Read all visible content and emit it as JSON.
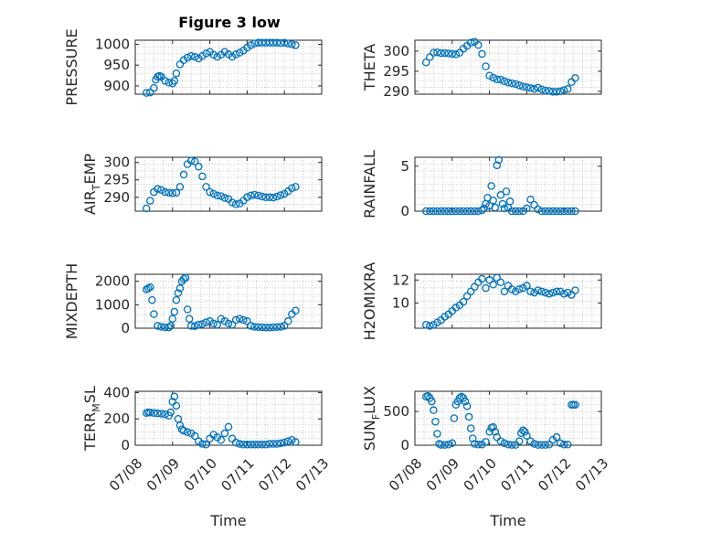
{
  "figure_title": "Figure 3 low",
  "marker_color": "#0072BD",
  "chart_data": [
    {
      "type": "scatter",
      "title": "Figure 3 low",
      "ylabel": "PRESSURE",
      "xlabel": "",
      "ylim": [
        880,
        1010
      ],
      "yticks": [
        900,
        950,
        1000
      ],
      "xlim": [
        8,
        13
      ],
      "grid": true,
      "x": [
        8.3,
        8.4,
        8.5,
        8.55,
        8.6,
        8.65,
        8.7,
        8.8,
        8.9,
        9.0,
        9.05,
        9.1,
        9.2,
        9.3,
        9.4,
        9.5,
        9.6,
        9.7,
        9.8,
        9.9,
        10.0,
        10.1,
        10.2,
        10.3,
        10.4,
        10.5,
        10.6,
        10.7,
        10.8,
        10.9,
        11.0,
        11.1,
        11.2,
        11.3,
        11.4,
        11.5,
        11.6,
        11.7,
        11.8,
        11.9,
        12.0,
        12.1,
        12.2,
        12.3
      ],
      "y": [
        883,
        884,
        895,
        915,
        922,
        924,
        922,
        912,
        908,
        906,
        912,
        930,
        952,
        962,
        968,
        972,
        970,
        966,
        972,
        978,
        982,
        975,
        970,
        975,
        982,
        976,
        970,
        976,
        980,
        985,
        992,
        998,
        1002,
        1004,
        1004,
        1004,
        1004,
        1004,
        1004,
        1003,
        1004,
        1002,
        1000,
        998
      ]
    },
    {
      "type": "scatter",
      "ylabel": "THETA",
      "xlabel": "",
      "ylim": [
        289.3,
        302.7
      ],
      "yticks": [
        290,
        295,
        300
      ],
      "xlim": [
        8,
        13
      ],
      "grid": true,
      "x": [
        8.3,
        8.4,
        8.5,
        8.6,
        8.7,
        8.8,
        8.9,
        9.0,
        9.1,
        9.2,
        9.3,
        9.4,
        9.5,
        9.6,
        9.7,
        9.8,
        9.9,
        10.0,
        10.1,
        10.2,
        10.3,
        10.4,
        10.5,
        10.6,
        10.7,
        10.8,
        10.9,
        11.0,
        11.1,
        11.2,
        11.3,
        11.4,
        11.5,
        11.6,
        11.7,
        11.8,
        11.9,
        12.0,
        12.1,
        12.2,
        12.3
      ],
      "y": [
        297.2,
        298.5,
        299.6,
        299.7,
        299.5,
        299.5,
        299.4,
        299.3,
        299.2,
        299.6,
        300.6,
        301.3,
        302.1,
        302.3,
        301.5,
        299.3,
        296.2,
        293.9,
        293.4,
        293.0,
        292.9,
        292.5,
        292.2,
        292.0,
        291.8,
        291.5,
        291.2,
        291.0,
        290.8,
        290.6,
        290.9,
        290.5,
        290.2,
        290.1,
        289.9,
        289.9,
        290.0,
        290.3,
        290.6,
        292.3,
        293.3
      ]
    },
    {
      "type": "scatter",
      "ylabel": "AIR_TEMP",
      "ylabel_main": "AIR",
      "ylabel_sub": "T",
      "ylabel_rest": "EMP",
      "xlabel": "",
      "ylim": [
        286,
        301.5
      ],
      "yticks": [
        290,
        295,
        300
      ],
      "xlim": [
        8,
        13
      ],
      "grid": true,
      "x": [
        8.3,
        8.4,
        8.5,
        8.6,
        8.7,
        8.8,
        8.9,
        9.0,
        9.1,
        9.2,
        9.3,
        9.4,
        9.5,
        9.6,
        9.7,
        9.8,
        9.9,
        10.0,
        10.1,
        10.2,
        10.3,
        10.4,
        10.5,
        10.6,
        10.7,
        10.8,
        10.9,
        11.0,
        11.1,
        11.2,
        11.3,
        11.4,
        11.5,
        11.6,
        11.7,
        11.8,
        11.9,
        12.0,
        12.1,
        12.2,
        12.3
      ],
      "y": [
        286.8,
        289.0,
        291.5,
        292.4,
        292.1,
        291.5,
        291.3,
        291.2,
        291.3,
        293.0,
        296.5,
        299.5,
        300.5,
        300.3,
        298.8,
        296.0,
        293.0,
        291.5,
        291.0,
        290.5,
        290.3,
        289.8,
        289.5,
        288.5,
        288.0,
        288.2,
        289.0,
        290.0,
        290.5,
        290.7,
        290.5,
        290.2,
        290.0,
        290.0,
        289.9,
        290.2,
        290.6,
        291.0,
        291.7,
        292.6,
        293.0
      ]
    },
    {
      "type": "scatter",
      "ylabel": "RAINFALL",
      "xlabel": "",
      "ylim": [
        0,
        6
      ],
      "yticks": [
        0,
        5
      ],
      "xlim": [
        8,
        13
      ],
      "grid": true,
      "x": [
        8.3,
        8.4,
        8.5,
        8.6,
        8.7,
        8.8,
        8.9,
        9.0,
        9.1,
        9.2,
        9.3,
        9.4,
        9.5,
        9.6,
        9.7,
        9.8,
        9.85,
        9.9,
        9.95,
        10.0,
        10.05,
        10.1,
        10.15,
        10.2,
        10.25,
        10.3,
        10.35,
        10.4,
        10.45,
        10.5,
        10.55,
        10.6,
        10.7,
        10.8,
        10.9,
        11.0,
        11.1,
        11.2,
        11.3,
        11.4,
        11.5,
        11.6,
        11.7,
        11.8,
        11.9,
        12.0,
        12.1,
        12.2,
        12.3
      ],
      "y": [
        0,
        0,
        0,
        0,
        0,
        0,
        0,
        0,
        0,
        0,
        0,
        0,
        0,
        0,
        0,
        0.1,
        0.3,
        0.8,
        1.5,
        0.6,
        2.8,
        1.2,
        0.4,
        5.1,
        5.7,
        1.8,
        0.8,
        0.3,
        2.2,
        0.4,
        1.1,
        0,
        0,
        0,
        0,
        0.3,
        1.3,
        0.7,
        0.2,
        0,
        0,
        0,
        0,
        0,
        0,
        0,
        0,
        0,
        0
      ]
    },
    {
      "type": "scatter",
      "ylabel": "MIXDEPTH",
      "xlabel": "",
      "ylim": [
        0,
        2300
      ],
      "yticks": [
        0,
        1000,
        2000
      ],
      "xlim": [
        8,
        13
      ],
      "grid": true,
      "x": [
        8.3,
        8.35,
        8.4,
        8.45,
        8.5,
        8.6,
        8.7,
        8.8,
        8.9,
        8.95,
        9.0,
        9.05,
        9.1,
        9.15,
        9.2,
        9.25,
        9.3,
        9.35,
        9.4,
        9.45,
        9.5,
        9.6,
        9.7,
        9.8,
        9.9,
        10.0,
        10.1,
        10.2,
        10.3,
        10.4,
        10.5,
        10.6,
        10.7,
        10.8,
        10.9,
        11.0,
        11.1,
        11.2,
        11.3,
        11.4,
        11.5,
        11.6,
        11.7,
        11.8,
        11.9,
        12.0,
        12.1,
        12.2,
        12.3
      ],
      "y": [
        1650,
        1700,
        1750,
        1200,
        600,
        100,
        60,
        40,
        30,
        100,
        400,
        700,
        1200,
        1500,
        1700,
        2000,
        2100,
        2150,
        800,
        400,
        100,
        90,
        150,
        180,
        250,
        300,
        200,
        150,
        400,
        300,
        200,
        150,
        350,
        400,
        350,
        300,
        100,
        60,
        50,
        40,
        30,
        30,
        40,
        50,
        60,
        100,
        300,
        600,
        750
      ]
    },
    {
      "type": "scatter",
      "ylabel": "H2OMIXRA",
      "xlabel": "",
      "ylim": [
        7.8,
        12.5
      ],
      "yticks": [
        10,
        12
      ],
      "xlim": [
        8,
        13
      ],
      "grid": true,
      "x": [
        8.3,
        8.4,
        8.5,
        8.6,
        8.7,
        8.8,
        8.9,
        9.0,
        9.1,
        9.2,
        9.3,
        9.4,
        9.5,
        9.6,
        9.7,
        9.8,
        9.9,
        10.0,
        10.1,
        10.2,
        10.3,
        10.4,
        10.5,
        10.6,
        10.7,
        10.8,
        10.9,
        11.0,
        11.1,
        11.2,
        11.3,
        11.4,
        11.5,
        11.6,
        11.7,
        11.8,
        11.9,
        12.0,
        12.1,
        12.2,
        12.3
      ],
      "y": [
        8.1,
        8.0,
        8.1,
        8.3,
        8.5,
        8.8,
        9.0,
        9.3,
        9.6,
        9.8,
        10.1,
        10.6,
        11.0,
        11.4,
        11.8,
        12.1,
        11.3,
        12.0,
        11.6,
        12.2,
        11.8,
        11.0,
        11.5,
        11.2,
        11.0,
        11.2,
        11.3,
        11.5,
        11.0,
        10.9,
        11.1,
        11.0,
        10.9,
        10.8,
        10.9,
        11.0,
        11.0,
        10.8,
        10.9,
        10.7,
        11.1
      ]
    },
    {
      "type": "scatter",
      "ylabel": "TERR_MSL",
      "ylabel_main": "TERR",
      "ylabel_sub": "M",
      "ylabel_rest": "SL",
      "xlabel": "Time",
      "ylim": [
        0,
        410
      ],
      "yticks": [
        0,
        200,
        400
      ],
      "xlim": [
        8,
        13
      ],
      "xticks": [
        "07/08",
        "07/09",
        "07/10",
        "07/11",
        "07/12",
        "07/13"
      ],
      "grid": true,
      "x": [
        8.3,
        8.35,
        8.4,
        8.5,
        8.6,
        8.7,
        8.8,
        8.9,
        8.95,
        9.0,
        9.05,
        9.1,
        9.15,
        9.2,
        9.25,
        9.3,
        9.4,
        9.5,
        9.6,
        9.7,
        9.8,
        9.9,
        10.0,
        10.1,
        10.2,
        10.3,
        10.4,
        10.5,
        10.6,
        10.7,
        10.8,
        10.9,
        11.0,
        11.1,
        11.2,
        11.3,
        11.4,
        11.5,
        11.6,
        11.7,
        11.8,
        11.9,
        12.0,
        12.1,
        12.2,
        12.3
      ],
      "y": [
        245,
        250,
        248,
        245,
        242,
        240,
        235,
        225,
        250,
        330,
        370,
        300,
        200,
        150,
        120,
        110,
        100,
        90,
        70,
        30,
        10,
        5,
        50,
        80,
        60,
        40,
        90,
        140,
        50,
        20,
        10,
        5,
        5,
        5,
        5,
        5,
        5,
        5,
        10,
        10,
        10,
        15,
        20,
        30,
        40,
        25
      ]
    },
    {
      "type": "scatter",
      "ylabel": "SUN_FLUX",
      "ylabel_main": "SUN",
      "ylabel_sub": "F",
      "ylabel_rest": "LUX",
      "xlabel": "Time",
      "ylim": [
        0,
        800
      ],
      "yticks": [
        0,
        500
      ],
      "xlim": [
        8,
        13
      ],
      "xticks": [
        "07/08",
        "07/09",
        "07/10",
        "07/11",
        "07/12",
        "07/13"
      ],
      "grid": true,
      "x": [
        8.3,
        8.35,
        8.4,
        8.45,
        8.5,
        8.55,
        8.6,
        8.65,
        8.7,
        8.8,
        8.9,
        9.0,
        9.05,
        9.1,
        9.15,
        9.2,
        9.25,
        9.3,
        9.35,
        9.4,
        9.45,
        9.5,
        9.55,
        9.6,
        9.7,
        9.8,
        9.9,
        10.0,
        10.05,
        10.1,
        10.15,
        10.2,
        10.3,
        10.4,
        10.5,
        10.6,
        10.7,
        10.8,
        10.85,
        10.9,
        10.95,
        11.0,
        11.1,
        11.2,
        11.3,
        11.4,
        11.5,
        11.6,
        11.7,
        11.8,
        11.9,
        12.0,
        12.1,
        12.2,
        12.25,
        12.3
      ],
      "y": [
        720,
        730,
        700,
        650,
        520,
        350,
        170,
        20,
        5,
        5,
        10,
        30,
        400,
        600,
        650,
        700,
        720,
        700,
        650,
        580,
        420,
        250,
        100,
        20,
        10,
        10,
        50,
        200,
        260,
        270,
        200,
        120,
        60,
        30,
        10,
        5,
        5,
        60,
        180,
        220,
        200,
        140,
        60,
        20,
        5,
        5,
        5,
        10,
        80,
        120,
        30,
        10,
        10,
        600,
        600,
        600
      ]
    }
  ]
}
